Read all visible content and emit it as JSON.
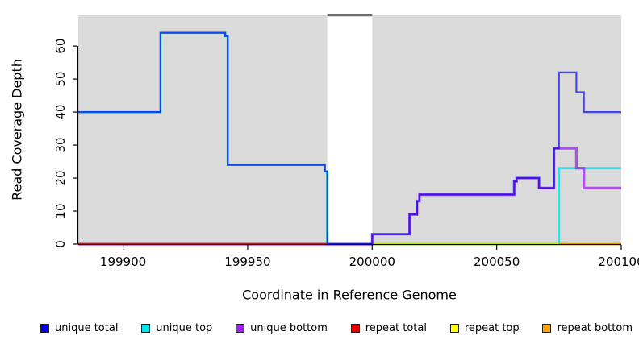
{
  "figure": {
    "xlabel": "Coordinate in Reference Genome",
    "ylabel": "Read Coverage Depth"
  },
  "chart_data": {
    "type": "line",
    "style": "step",
    "title": "",
    "xlabel": "Coordinate in Reference Genome",
    "ylabel": "Read Coverage Depth",
    "xlim": [
      199882,
      200100
    ],
    "ylim": [
      0,
      69.3
    ],
    "x_ticks": [
      199900,
      199950,
      200000,
      200050,
      200100
    ],
    "x_tick_labels": [
      "199900",
      "199950",
      "200000",
      "200050",
      "200100"
    ],
    "y_ticks": [
      0,
      10,
      20,
      30,
      40,
      50,
      60
    ],
    "grid": "off",
    "panel_color": "#DADADA",
    "gap_band": {
      "x_start": 199982,
      "x_end": 200000,
      "fill": "#FFFFFF",
      "top_border_color": "#6E6E6E"
    },
    "legend_position": "bottom-horizontal",
    "series": [
      {
        "name": "unique total",
        "color": "#0000EE",
        "opacity": 0.68,
        "x_end": 200100,
        "steps": [
          [
            199882,
            40
          ],
          [
            199915,
            64
          ],
          [
            199941,
            63
          ],
          [
            199942,
            24
          ],
          [
            199981,
            22
          ],
          [
            199982,
            0
          ],
          [
            200000,
            3
          ],
          [
            200015,
            9
          ],
          [
            200018,
            13
          ],
          [
            200019,
            15
          ],
          [
            200057,
            19
          ],
          [
            200058,
            20
          ],
          [
            200067,
            17
          ],
          [
            200073,
            29
          ],
          [
            200075,
            52
          ],
          [
            200082,
            46
          ],
          [
            200085,
            40
          ]
        ]
      },
      {
        "name": "unique top",
        "color": "#00E5EE",
        "opacity": 0.85,
        "x_end": 200100,
        "steps": [
          [
            199882,
            40
          ],
          [
            199915,
            64
          ],
          [
            199941,
            63
          ],
          [
            199942,
            24
          ],
          [
            199981,
            22
          ],
          [
            199982,
            0
          ],
          [
            200075,
            23
          ]
        ]
      },
      {
        "name": "unique bottom",
        "color": "#A020F0",
        "opacity": 0.75,
        "x_end": 200100,
        "steps": [
          [
            199882,
            0
          ],
          [
            200000,
            3
          ],
          [
            200015,
            9
          ],
          [
            200018,
            13
          ],
          [
            200019,
            15
          ],
          [
            200057,
            19
          ],
          [
            200058,
            20
          ],
          [
            200067,
            17
          ],
          [
            200073,
            29
          ],
          [
            200082,
            23
          ],
          [
            200085,
            17
          ]
        ]
      },
      {
        "name": "repeat total",
        "color": "#EE0000",
        "opacity": 0.75,
        "x_end": 199982,
        "steps": [
          [
            199882,
            0
          ]
        ]
      },
      {
        "name": "repeat top",
        "color": "#FFFF00",
        "opacity": 0.85,
        "x_end": 200075,
        "steps": [
          [
            200000,
            0
          ]
        ]
      },
      {
        "name": "repeat bottom",
        "color": "#FFA500",
        "opacity": 0.95,
        "x_end": 200100,
        "steps": [
          [
            200075,
            0
          ]
        ]
      }
    ]
  },
  "legend": {
    "items": [
      {
        "label": "unique total",
        "color": "#0000EE"
      },
      {
        "label": "unique top",
        "color": "#00E5EE"
      },
      {
        "label": "unique bottom",
        "color": "#A020F0"
      },
      {
        "label": "repeat total",
        "color": "#EE0000"
      },
      {
        "label": "repeat top",
        "color": "#FFFF00"
      },
      {
        "label": "repeat bottom",
        "color": "#FFA500"
      }
    ]
  }
}
